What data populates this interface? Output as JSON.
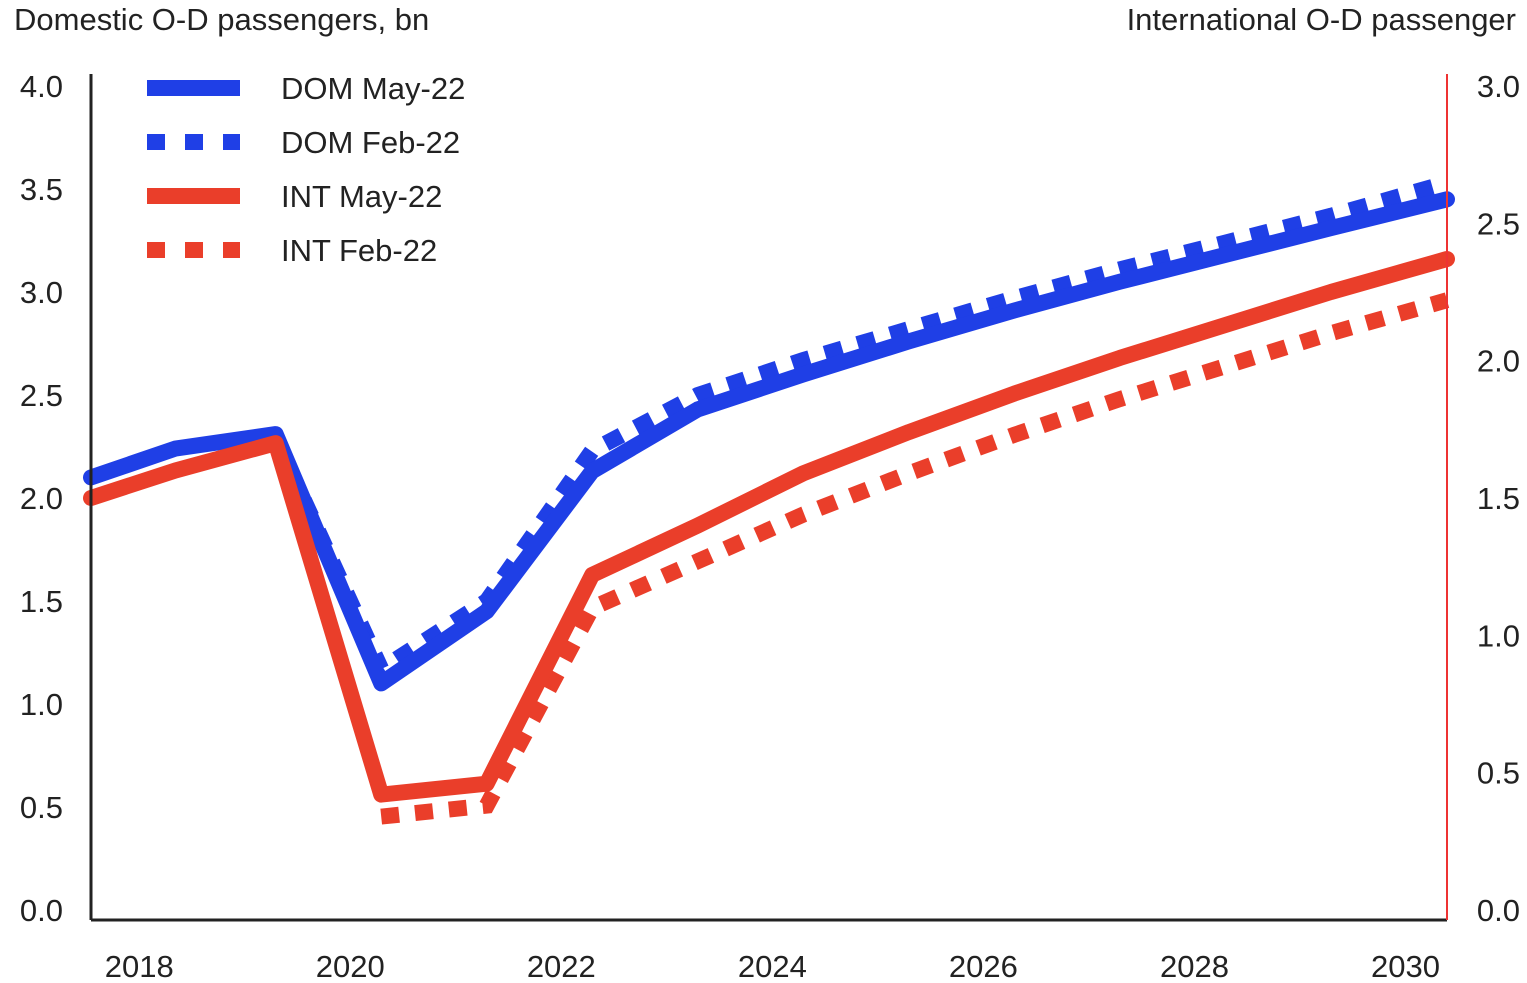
{
  "chart_data": {
    "type": "line",
    "y_left_label": "Domestic O-D passengers, bn",
    "y_right_label": "International O-D passenger",
    "xlim": [
      2017.6,
      2030.45
    ],
    "ylim_left": [
      0,
      4.0
    ],
    "ylim_right": [
      0,
      3.0
    ],
    "x_ticks": [
      "2018",
      "2020",
      "2022",
      "2024",
      "2026",
      "2028",
      "2030"
    ],
    "y_left_ticks": [
      "0.0",
      "0.5",
      "1.0",
      "1.5",
      "2.0",
      "2.5",
      "3.0",
      "3.5",
      "4.0"
    ],
    "y_right_ticks": [
      "0.0",
      "0.5",
      "1.0",
      "1.5",
      "2.0",
      "2.5",
      "3.0"
    ],
    "legend_position": "top-left",
    "colors": {
      "dom": "#1f3fe6",
      "int": "#ea3e2a",
      "right_axis": "#ee3333",
      "axis": "#222222"
    },
    "series": [
      {
        "name": "DOM May-22",
        "axis": "left",
        "style": "solid",
        "color": "#1f3fe6",
        "x": [
          2017.6,
          2018.4,
          2019.35,
          2020.35,
          2021.35,
          2022.35,
          2023.35,
          2024.35,
          2025.35,
          2026.35,
          2027.35,
          2028.35,
          2029.35,
          2030.45
        ],
        "y": [
          2.1,
          2.24,
          2.31,
          1.1,
          1.45,
          2.13,
          2.43,
          2.6,
          2.76,
          2.91,
          3.05,
          3.18,
          3.31,
          3.45
        ]
      },
      {
        "name": "DOM Feb-22",
        "axis": "left",
        "style": "dotted",
        "color": "#1f3fe6",
        "x": [
          2019.35,
          2020.35,
          2021.35,
          2022.35,
          2023.35,
          2024.35,
          2025.35,
          2026.35,
          2027.35,
          2028.35,
          2029.35,
          2030.45
        ],
        "y": [
          2.29,
          1.17,
          1.5,
          2.23,
          2.5,
          2.67,
          2.82,
          2.97,
          3.11,
          3.24,
          3.37,
          3.53
        ]
      },
      {
        "name": "INT May-22",
        "axis": "right",
        "style": "solid",
        "color": "#ea3e2a",
        "x": [
          2017.6,
          2018.4,
          2019.35,
          2020.35,
          2021.35,
          2022.35,
          2023.35,
          2024.35,
          2025.35,
          2026.35,
          2027.35,
          2028.35,
          2029.35,
          2030.45
        ],
        "y": [
          1.5,
          1.6,
          1.7,
          0.42,
          0.46,
          1.22,
          1.4,
          1.59,
          1.74,
          1.88,
          2.01,
          2.13,
          2.25,
          2.37
        ]
      },
      {
        "name": "INT Feb-22",
        "axis": "right",
        "style": "dotted",
        "color": "#ea3e2a",
        "x": [
          2020.35,
          2021.35,
          2022.35,
          2023.35,
          2024.35,
          2025.35,
          2026.35,
          2027.35,
          2028.35,
          2029.35,
          2030.45
        ],
        "y": [
          0.34,
          0.38,
          1.1,
          1.27,
          1.44,
          1.59,
          1.73,
          1.86,
          1.98,
          2.1,
          2.22
        ]
      }
    ]
  }
}
